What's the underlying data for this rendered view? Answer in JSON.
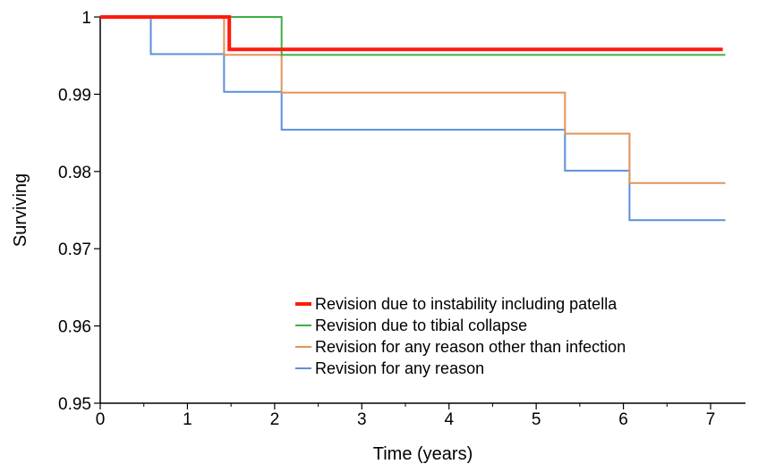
{
  "chart_data": {
    "type": "line",
    "step": true,
    "xlabel": "Time (years)",
    "ylabel": "Surviving",
    "xlim": [
      0,
      7.4
    ],
    "ylim": [
      0.95,
      1.0
    ],
    "x_ticks": [
      0,
      1,
      2,
      3,
      4,
      5,
      6,
      7
    ],
    "x_minor_ticks": [
      0.5,
      1.5,
      2.5,
      3.5,
      4.5,
      5.5,
      6.5
    ],
    "y_ticks": [
      0.95,
      0.96,
      0.97,
      0.98,
      0.99,
      1.0
    ],
    "y_tick_labels": [
      "0.95",
      "0.96",
      "0.97",
      "0.98",
      "0.99",
      "1"
    ],
    "x_tick_labels": [
      "0",
      "1",
      "2",
      "3",
      "4",
      "5",
      "6",
      "7"
    ],
    "grid": false,
    "legend_position": "bottom-right",
    "series": [
      {
        "name": "Revision for any reason",
        "color": "#5b8fdc",
        "width": 2,
        "x": [
          0,
          0.58,
          1.42,
          2.08,
          5.33,
          6.07,
          7.17
        ],
        "y": [
          1.0,
          0.9952,
          0.9903,
          0.9854,
          0.9801,
          0.9737,
          0.9737
        ]
      },
      {
        "name": "Revision for any reason other than infection",
        "color": "#e0935a",
        "width": 2,
        "x": [
          0,
          1.42,
          2.08,
          5.33,
          6.07,
          7.17
        ],
        "y": [
          1.0,
          0.9951,
          0.9902,
          0.9849,
          0.9785,
          0.9785
        ]
      },
      {
        "name": "Revision due to tibial collapse",
        "color": "#3cb043",
        "width": 2,
        "x": [
          0,
          2.08,
          7.17
        ],
        "y": [
          1.0,
          0.9951,
          0.9951
        ]
      },
      {
        "name": "Revision due to instability including patella",
        "color": "#ff1a0d",
        "width": 4,
        "x": [
          0,
          1.48,
          7.14
        ],
        "y": [
          1.0,
          0.9958,
          0.9958
        ]
      }
    ],
    "legend_order": [
      3,
      2,
      1,
      0
    ]
  }
}
